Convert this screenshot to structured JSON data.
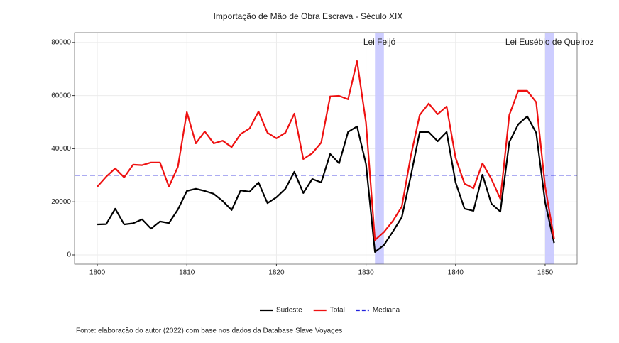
{
  "chart_data": {
    "type": "line",
    "title": "Importação de Mão de Obra Escrava - Século XIX",
    "caption": "Fonte: elaboração do autor (2022) com base nos dados da Database Slave Voyages",
    "x": [
      1800,
      1801,
      1802,
      1803,
      1804,
      1805,
      1806,
      1807,
      1808,
      1809,
      1810,
      1811,
      1812,
      1813,
      1814,
      1815,
      1816,
      1817,
      1818,
      1819,
      1820,
      1821,
      1822,
      1823,
      1824,
      1825,
      1826,
      1827,
      1828,
      1829,
      1830,
      1831,
      1832,
      1833,
      1834,
      1835,
      1836,
      1837,
      1838,
      1839,
      1840,
      1841,
      1842,
      1843,
      1844,
      1845,
      1846,
      1847,
      1848,
      1849,
      1850,
      1851
    ],
    "series": [
      {
        "name": "Sudeste",
        "color": "#000000",
        "values": [
          11500,
          11600,
          17400,
          11500,
          11900,
          13400,
          9900,
          12600,
          12000,
          17100,
          24100,
          24900,
          24100,
          23000,
          20300,
          16900,
          24300,
          23800,
          27300,
          19500,
          21700,
          24900,
          31300,
          23300,
          28600,
          27300,
          38000,
          34500,
          46300,
          48400,
          34200,
          1100,
          3700,
          8800,
          14200,
          29700,
          46300,
          46300,
          42800,
          46300,
          27300,
          17400,
          16600,
          30200,
          19300,
          16300,
          42500,
          49200,
          52200,
          46000,
          19800,
          4500
        ]
      },
      {
        "name": "Total",
        "color": "#ee1111",
        "values": [
          25700,
          29500,
          32600,
          29200,
          34000,
          33800,
          34800,
          34800,
          25700,
          33200,
          53800,
          42000,
          46500,
          42000,
          43000,
          40600,
          45500,
          47600,
          54000,
          46000,
          43900,
          46000,
          53200,
          36100,
          38300,
          42300,
          59700,
          59900,
          58600,
          73000,
          49800,
          5600,
          8600,
          12800,
          18200,
          37200,
          52700,
          57000,
          53000,
          55900,
          36600,
          26800,
          25100,
          34500,
          28600,
          21100,
          52700,
          61800,
          61800,
          57500,
          25700,
          6100
        ]
      }
    ],
    "hline": {
      "name": "Mediana",
      "value": 30000,
      "color": "#2222dd"
    },
    "bands": [
      {
        "label": "Lei Feijó",
        "x": [
          1831,
          1832
        ]
      },
      {
        "label": "Lei Eusébio de Queiroz",
        "x": [
          1850,
          1851
        ]
      }
    ],
    "band_color": "#c8c8ff",
    "xlim": [
      1797.46,
      1853.57
    ],
    "ylim": [
      -3480,
      83700
    ],
    "xticks": [
      1800,
      1810,
      1820,
      1830,
      1840,
      1850
    ],
    "yticks": [
      0,
      20000,
      40000,
      60000,
      80000
    ],
    "grid": true
  }
}
